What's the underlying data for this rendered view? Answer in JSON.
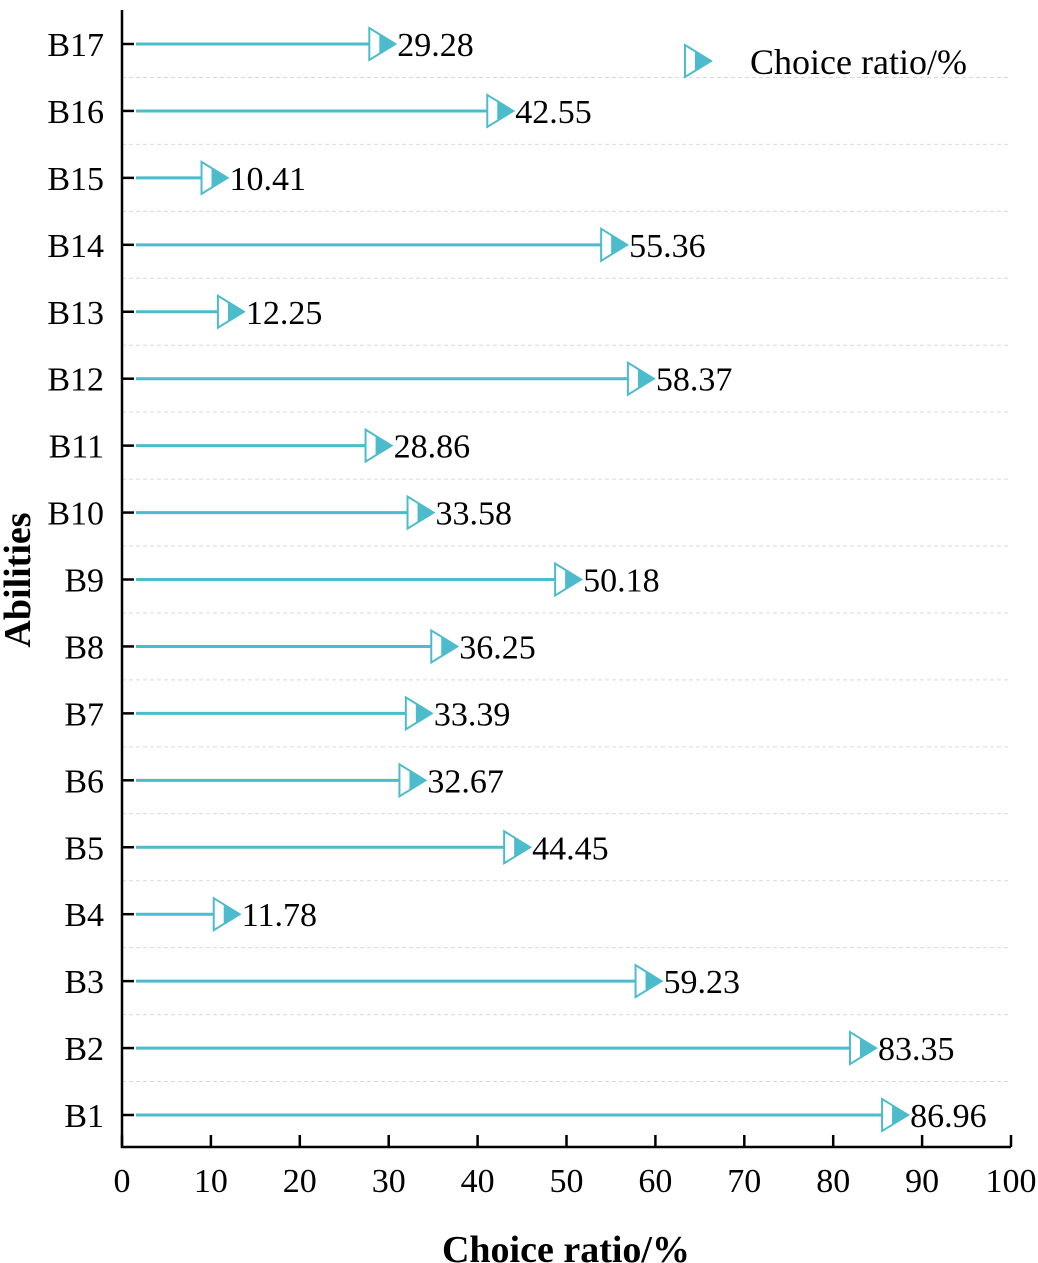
{
  "chart_data": {
    "type": "lollipop-horizontal",
    "title": "",
    "xlabel": "Choice ratio/%",
    "ylabel": "Abilities",
    "xlim": [
      0,
      100
    ],
    "x_ticks": [
      "0",
      "10",
      "20",
      "30",
      "40",
      "50",
      "60",
      "70",
      "80",
      "90",
      "100"
    ],
    "grid": "horizontal dashed between categories",
    "legend": {
      "label": "Choice ratio/%",
      "placement": "top-right",
      "marker": "triangle-right"
    },
    "series_color": "#4cbccc",
    "categories": [
      "B1",
      "B2",
      "B3",
      "B4",
      "B5",
      "B6",
      "B7",
      "B8",
      "B9",
      "B10",
      "B11",
      "B12",
      "B13",
      "B14",
      "B15",
      "B16",
      "B17"
    ],
    "values": [
      86.96,
      83.35,
      59.23,
      11.78,
      44.45,
      32.67,
      33.39,
      36.25,
      50.18,
      33.58,
      28.86,
      58.37,
      12.25,
      55.36,
      10.41,
      42.55,
      29.28
    ],
    "value_labels": [
      "86.96",
      "83.35",
      "59.23",
      "11.78",
      "44.45",
      "32.67",
      "33.39",
      "36.25",
      "50.18",
      "33.58",
      "28.86",
      "58.37",
      "12.25",
      "55.36",
      "10.41",
      "42.55",
      "29.28"
    ]
  }
}
